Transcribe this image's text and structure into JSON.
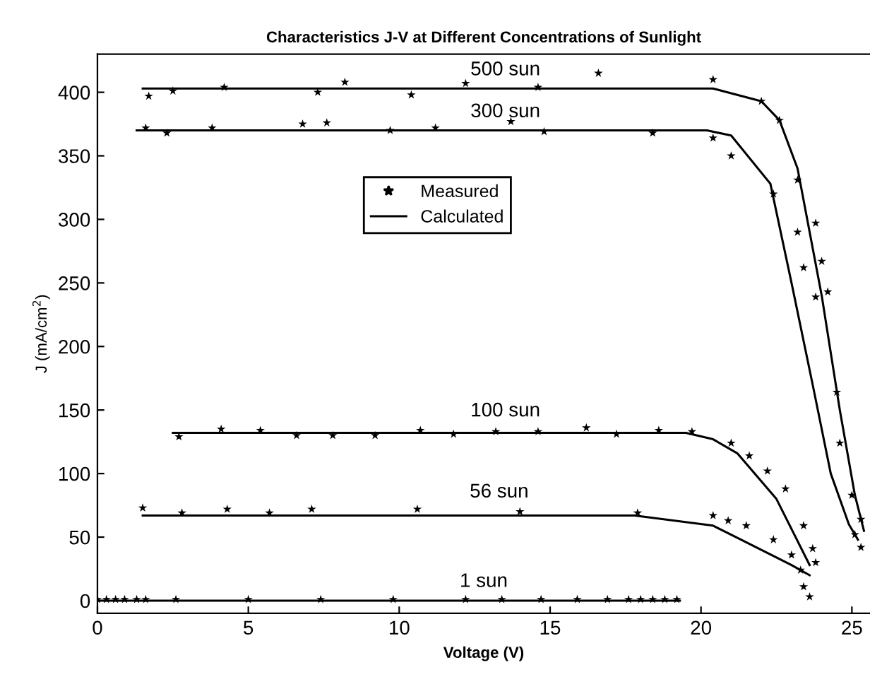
{
  "chart_data": {
    "type": "line",
    "title": "Characteristics J-V at Different Concentrations of Sunlight",
    "xlabel": "Voltage (V)",
    "ylabel": "J (mA/cm$^{2}$)",
    "xlim": [
      0,
      25.6
    ],
    "ylim": [
      -10,
      430
    ],
    "xticks": [
      0,
      5,
      10,
      15,
      20,
      25
    ],
    "yticks": [
      0,
      50,
      100,
      150,
      200,
      250,
      300,
      350,
      400
    ],
    "grid": false,
    "legend": "center",
    "annotations": [
      "500 sun",
      "300 sun",
      "100 sun",
      "56 sun",
      "1 sun"
    ],
    "series": [
      {
        "name": "Measured",
        "type": "scatter",
        "marker": "star",
        "color": "#000000",
        "x": [
          1.7,
          2.5,
          4.2,
          7.3,
          8.2,
          10.4,
          12.2,
          14.6,
          16.6,
          20.4,
          22.0,
          22.6,
          23.2,
          23.8,
          24.0,
          24.2,
          25.0,
          25.3,
          25.3
        ],
        "values": [
          397,
          401,
          404,
          400,
          408,
          398,
          407,
          404,
          415,
          410,
          393,
          378,
          331,
          297,
          267,
          243,
          83,
          64,
          42
        ]
      },
      {
        "type": "scatter",
        "marker": "star",
        "color": "#000000",
        "x": [
          1.6,
          2.3,
          3.8,
          6.8,
          7.6,
          9.7,
          11.2,
          13.7,
          14.8,
          18.4,
          20.4,
          21.0,
          22.4,
          23.2,
          23.4,
          23.8,
          24.5,
          24.6,
          25.1
        ],
        "values": [
          372,
          368,
          372,
          375,
          376,
          370,
          372,
          377,
          369,
          368,
          364,
          350,
          320,
          290,
          262,
          239,
          164,
          124,
          52
        ]
      },
      {
        "type": "scatter",
        "marker": "star",
        "color": "#000000",
        "x": [
          2.7,
          4.1,
          5.4,
          6.6,
          7.8,
          9.2,
          10.7,
          11.8,
          13.2,
          14.6,
          16.2,
          17.2,
          18.6,
          19.7,
          21.0,
          21.6,
          22.2,
          22.8,
          23.4,
          23.7,
          23.8
        ],
        "values": [
          129,
          135,
          134,
          130,
          130,
          130,
          134,
          131,
          133,
          133,
          136,
          131,
          134,
          133,
          124,
          114,
          102,
          88,
          59,
          41,
          30
        ]
      },
      {
        "type": "scatter",
        "marker": "star",
        "color": "#000000",
        "x": [
          1.5,
          2.8,
          4.3,
          5.7,
          7.1,
          10.6,
          14.0,
          17.9,
          20.4,
          20.9,
          21.5,
          22.4,
          23.0,
          23.3,
          23.4,
          23.6
        ],
        "values": [
          73,
          69,
          72,
          69,
          72,
          72,
          70,
          69,
          67,
          63,
          59,
          48,
          36,
          24,
          11,
          3
        ]
      },
      {
        "type": "scatter",
        "marker": "star",
        "color": "#000000",
        "x": [
          0,
          0.3,
          0.6,
          0.9,
          1.3,
          1.6,
          2.6,
          5.0,
          7.4,
          9.8,
          12.2,
          13.4,
          14.7,
          15.9,
          16.9,
          17.6,
          18.0,
          18.4,
          18.8,
          19.2
        ],
        "values": [
          1,
          1,
          1,
          1,
          1,
          1,
          1,
          1,
          1,
          1,
          1,
          1,
          1,
          1,
          1,
          1,
          1,
          1,
          1,
          1
        ]
      },
      {
        "name": "Calculated",
        "marker": "none",
        "color": "#000000",
        "x": [
          1.5,
          20.4,
          22.0,
          22.6,
          23.2,
          24.0,
          24.6,
          25.1,
          25.4
        ],
        "values": [
          403,
          403,
          393,
          378,
          340,
          240,
          150,
          83,
          55
        ]
      },
      {
        "marker": "none",
        "color": "#000000",
        "x": [
          1.3,
          20.2,
          21.0,
          22.3,
          23.0,
          23.7,
          24.3,
          24.9,
          25.2
        ],
        "values": [
          370,
          370,
          366,
          328,
          250,
          170,
          100,
          60,
          48
        ]
      },
      {
        "marker": "none",
        "color": "#000000",
        "x": [
          2.5,
          19.5,
          20.4,
          21.2,
          22.5,
          23.6
        ],
        "values": [
          132,
          132,
          127,
          116,
          80,
          28
        ]
      },
      {
        "marker": "none",
        "color": "#000000",
        "x": [
          1.5,
          17.8,
          20.4,
          22.0,
          23.0,
          23.6
        ],
        "values": [
          67,
          67,
          59,
          40,
          28,
          20
        ]
      },
      {
        "marker": "none",
        "color": "#000000",
        "x": [
          0,
          19.3
        ],
        "values": [
          0,
          0
        ]
      }
    ]
  }
}
